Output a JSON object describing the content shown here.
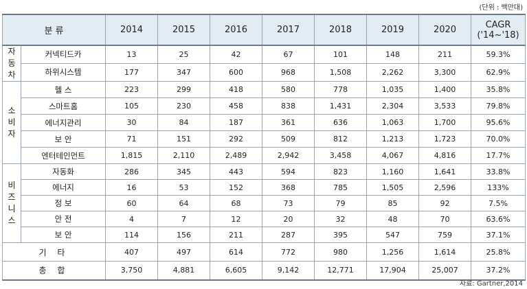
{
  "unit_note": "(단위 : 백만대)",
  "source_note": "자료: Gartner,2014",
  "header": {
    "category": "분 류",
    "years": [
      "2014",
      "2015",
      "2016",
      "2017",
      "2018",
      "2019",
      "2020"
    ],
    "cagr_line1": "CAGR",
    "cagr_line2": "('14~'18)"
  },
  "groups": {
    "auto": [
      "자",
      "동",
      "차"
    ],
    "consumer": [
      "소",
      "비",
      "자"
    ],
    "business": [
      "비",
      "즈",
      "니",
      "스"
    ]
  },
  "rows": [
    {
      "label": "커넥티드카",
      "values": [
        "13",
        "25",
        "42",
        "67",
        "101",
        "148",
        "211"
      ],
      "cagr": "59.3%"
    },
    {
      "label": "하위시스템",
      "values": [
        "177",
        "347",
        "600",
        "968",
        "1,508",
        "2,262",
        "3,300"
      ],
      "cagr": "62.9%"
    },
    {
      "label": "헬 스",
      "values": [
        "223",
        "299",
        "418",
        "580",
        "778",
        "1,035",
        "1,400"
      ],
      "cagr": "35.8%"
    },
    {
      "label": "스마트홈",
      "values": [
        "105",
        "230",
        "458",
        "838",
        "1,431",
        "2,304",
        "3,533"
      ],
      "cagr": "79.8%"
    },
    {
      "label": "에너지관리",
      "values": [
        "30",
        "84",
        "187",
        "361",
        "636",
        "1,063",
        "1,700"
      ],
      "cagr": "95.6%"
    },
    {
      "label": "보 안",
      "values": [
        "71",
        "151",
        "292",
        "509",
        "812",
        "1,213",
        "1,723"
      ],
      "cagr": "70.0%"
    },
    {
      "label": "엔터테인먼트",
      "values": [
        "1,815",
        "2,110",
        "2,489",
        "2,942",
        "3,458",
        "4,067",
        "4,816"
      ],
      "cagr": "17.7%"
    },
    {
      "label": "자동화",
      "values": [
        "286",
        "345",
        "443",
        "594",
        "823",
        "1,160",
        "1,641"
      ],
      "cagr": "33.8%"
    },
    {
      "label": "에너지",
      "values": [
        "16",
        "53",
        "152",
        "368",
        "785",
        "1,505",
        "2,596"
      ],
      "cagr": "133%"
    },
    {
      "label": "정 보",
      "values": [
        "60",
        "64",
        "68",
        "73",
        "79",
        "85",
        "92"
      ],
      "cagr": "7.5%"
    },
    {
      "label": "안 전",
      "values": [
        "4",
        "7",
        "12",
        "20",
        "32",
        "48",
        "70"
      ],
      "cagr": "63.6%"
    },
    {
      "label": "보 안",
      "values": [
        "114",
        "156",
        "211",
        "287",
        "395",
        "547",
        "759"
      ],
      "cagr": "37.1%"
    },
    {
      "label": "기 타",
      "values": [
        "407",
        "497",
        "614",
        "772",
        "980",
        "1,256",
        "1,614"
      ],
      "cagr": "25.8%"
    },
    {
      "label": "총 합",
      "values": [
        "3,750",
        "4,881",
        "6,605",
        "9,142",
        "12,771",
        "17,904",
        "25,007"
      ],
      "cagr": "37.2%"
    }
  ]
}
